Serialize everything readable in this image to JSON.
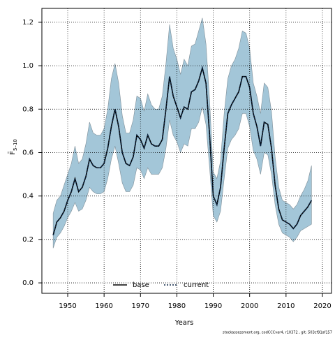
{
  "chart_data": {
    "type": "line",
    "y_label": {
      "symbol": "F̄",
      "subscript": "5–10"
    },
    "x_label": "Years",
    "footnote": "stockassessment.org, codCCCvar4, r10372 , git: 503cf91af157",
    "x": [
      1946,
      1947,
      1948,
      1949,
      1950,
      1951,
      1952,
      1953,
      1954,
      1955,
      1956,
      1957,
      1958,
      1959,
      1960,
      1961,
      1962,
      1963,
      1964,
      1965,
      1966,
      1967,
      1968,
      1969,
      1970,
      1971,
      1972,
      1973,
      1974,
      1975,
      1976,
      1977,
      1978,
      1979,
      1980,
      1981,
      1982,
      1983,
      1984,
      1985,
      1986,
      1987,
      1988,
      1989,
      1990,
      1991,
      1992,
      1993,
      1994,
      1995,
      1996,
      1997,
      1998,
      1999,
      2000,
      2001,
      2002,
      2003,
      2004,
      2005,
      2006,
      2007,
      2008,
      2009,
      2010,
      2011,
      2012,
      2013,
      2014,
      2015,
      2016,
      2017
    ],
    "series": [
      {
        "name": "base",
        "color": "#000000",
        "style": "solid",
        "values": [
          0.22,
          0.28,
          0.3,
          0.33,
          0.38,
          0.42,
          0.48,
          0.42,
          0.44,
          0.49,
          0.57,
          0.54,
          0.53,
          0.53,
          0.55,
          0.62,
          0.72,
          0.8,
          0.72,
          0.6,
          0.55,
          0.54,
          0.58,
          0.68,
          0.66,
          0.62,
          0.68,
          0.64,
          0.63,
          0.63,
          0.66,
          0.8,
          0.95,
          0.86,
          0.81,
          0.76,
          0.81,
          0.8,
          0.88,
          0.89,
          0.93,
          0.99,
          0.92,
          0.68,
          0.4,
          0.36,
          0.44,
          0.62,
          0.78,
          0.82,
          0.85,
          0.88,
          0.95,
          0.95,
          0.9,
          0.78,
          0.72,
          0.63,
          0.74,
          0.73,
          0.62,
          0.45,
          0.34,
          0.29,
          0.28,
          0.27,
          0.25,
          0.27,
          0.31,
          0.33,
          0.35,
          0.38
        ]
      },
      {
        "name": "current",
        "color": "#0b2545",
        "style": "dotted",
        "values": [
          0.22,
          0.28,
          0.3,
          0.33,
          0.38,
          0.42,
          0.48,
          0.42,
          0.44,
          0.49,
          0.57,
          0.54,
          0.53,
          0.53,
          0.55,
          0.62,
          0.72,
          0.8,
          0.72,
          0.6,
          0.55,
          0.54,
          0.58,
          0.68,
          0.66,
          0.62,
          0.68,
          0.64,
          0.63,
          0.63,
          0.66,
          0.8,
          0.95,
          0.86,
          0.81,
          0.76,
          0.81,
          0.8,
          0.88,
          0.89,
          0.93,
          0.99,
          0.92,
          0.68,
          0.4,
          0.36,
          0.44,
          0.62,
          0.78,
          0.82,
          0.85,
          0.88,
          0.95,
          0.95,
          0.9,
          0.78,
          0.72,
          0.63,
          0.74,
          0.73,
          0.62,
          0.45,
          0.34,
          0.29,
          0.28,
          0.27,
          0.25,
          0.27,
          0.31,
          0.33,
          0.35,
          0.38
        ]
      }
    ],
    "band": {
      "color": "#a3c6d8",
      "lower": [
        0.16,
        0.21,
        0.23,
        0.26,
        0.3,
        0.33,
        0.37,
        0.33,
        0.34,
        0.38,
        0.44,
        0.42,
        0.41,
        0.41,
        0.42,
        0.48,
        0.57,
        0.63,
        0.55,
        0.46,
        0.42,
        0.42,
        0.45,
        0.53,
        0.52,
        0.48,
        0.53,
        0.5,
        0.5,
        0.5,
        0.53,
        0.62,
        0.75,
        0.68,
        0.65,
        0.6,
        0.64,
        0.63,
        0.71,
        0.71,
        0.74,
        0.81,
        0.73,
        0.53,
        0.31,
        0.28,
        0.33,
        0.48,
        0.62,
        0.66,
        0.68,
        0.71,
        0.78,
        0.78,
        0.72,
        0.61,
        0.57,
        0.5,
        0.6,
        0.59,
        0.5,
        0.36,
        0.27,
        0.23,
        0.22,
        0.21,
        0.19,
        0.21,
        0.24,
        0.25,
        0.26,
        0.27
      ],
      "upper": [
        0.32,
        0.38,
        0.4,
        0.45,
        0.5,
        0.55,
        0.63,
        0.55,
        0.57,
        0.64,
        0.74,
        0.69,
        0.68,
        0.68,
        0.71,
        0.8,
        0.94,
        1.01,
        0.92,
        0.77,
        0.69,
        0.69,
        0.75,
        0.86,
        0.85,
        0.79,
        0.87,
        0.82,
        0.8,
        0.8,
        0.86,
        1.01,
        1.19,
        1.08,
        1.03,
        0.96,
        1.03,
        1.0,
        1.09,
        1.1,
        1.16,
        1.22,
        1.1,
        0.84,
        0.51,
        0.48,
        0.56,
        0.78,
        0.94,
        1.0,
        1.03,
        1.08,
        1.16,
        1.15,
        1.08,
        0.92,
        0.86,
        0.78,
        0.92,
        0.9,
        0.79,
        0.58,
        0.44,
        0.38,
        0.37,
        0.36,
        0.34,
        0.36,
        0.4,
        0.43,
        0.47,
        0.54
      ]
    },
    "xlim": [
      1942.9,
      2022.5
    ],
    "ylim": [
      -0.048,
      1.264
    ],
    "xticks": [
      1950,
      1960,
      1970,
      1980,
      1990,
      2000,
      2010,
      2020
    ],
    "yticks": [
      {
        "value": 0,
        "label": "0.0"
      },
      0.2,
      0.4,
      0.6,
      0.8,
      {
        "value": 1,
        "label": "1.0"
      },
      1.2
    ],
    "grid": true,
    "legend": "bottom"
  }
}
